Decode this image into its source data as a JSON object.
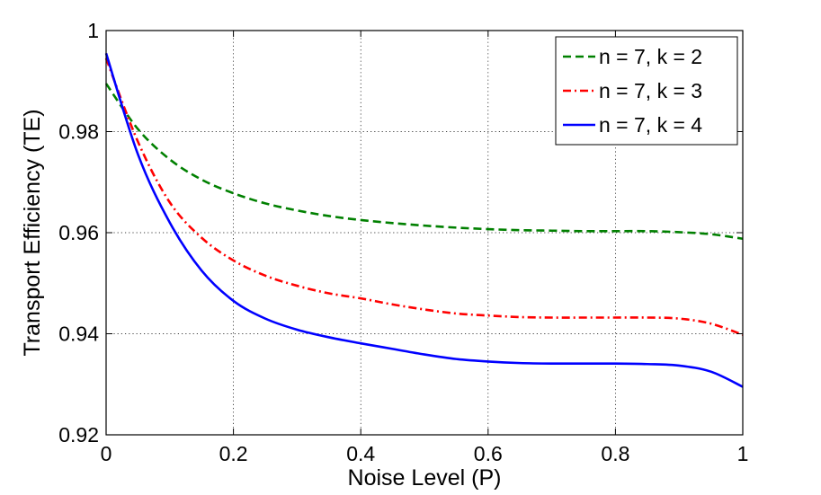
{
  "chart_data": {
    "type": "line",
    "title": "",
    "xlabel": "Noise Level (P)",
    "ylabel": "Transport Efficiency (TE)",
    "xlim": [
      0,
      1
    ],
    "ylim": [
      0.92,
      1
    ],
    "xticks": [
      0,
      0.2,
      0.4,
      0.6,
      0.8,
      1
    ],
    "xtick_labels": [
      "0",
      "0.2",
      "0.4",
      "0.6",
      "0.8",
      "1"
    ],
    "yticks": [
      0.92,
      0.94,
      0.96,
      0.98,
      1
    ],
    "ytick_labels": [
      "0.92",
      "0.94",
      "0.96",
      "0.98",
      "1"
    ],
    "grid": true,
    "legend_position": "top-right",
    "x": [
      0,
      0.05,
      0.1,
      0.15,
      0.2,
      0.25,
      0.3,
      0.35,
      0.4,
      0.45,
      0.5,
      0.55,
      0.6,
      0.65,
      0.7,
      0.75,
      0.8,
      0.85,
      0.9,
      0.95,
      1.0
    ],
    "series": [
      {
        "name": "n = 7, k = 2",
        "color": "#008000",
        "dash": "dashed",
        "values": [
          0.9895,
          0.9805,
          0.9745,
          0.9705,
          0.9678,
          0.9658,
          0.9644,
          0.9633,
          0.9625,
          0.9619,
          0.9614,
          0.961,
          0.9607,
          0.9605,
          0.9604,
          0.9603,
          0.9603,
          0.9603,
          0.9601,
          0.9597,
          0.9588
        ]
      },
      {
        "name": "n = 7, k = 3",
        "color": "#ff0000",
        "dash": "dash-dot",
        "values": [
          0.9945,
          0.978,
          0.966,
          0.959,
          0.9545,
          0.9515,
          0.9495,
          0.948,
          0.947,
          0.9458,
          0.9448,
          0.944,
          0.9436,
          0.9433,
          0.9432,
          0.9432,
          0.9432,
          0.9432,
          0.943,
          0.942,
          0.9398
        ]
      },
      {
        "name": "n = 7, k = 4",
        "color": "#0000ff",
        "dash": "solid",
        "values": [
          0.9955,
          0.9755,
          0.962,
          0.9525,
          0.9465,
          0.943,
          0.9408,
          0.9393,
          0.9381,
          0.937,
          0.9359,
          0.935,
          0.9345,
          0.9342,
          0.9341,
          0.9341,
          0.9341,
          0.934,
          0.9337,
          0.9325,
          0.9295
        ]
      }
    ]
  }
}
